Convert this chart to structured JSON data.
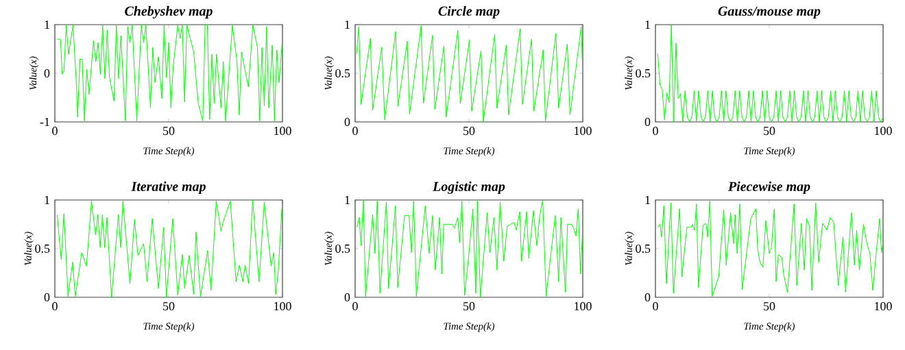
{
  "chart_data": [
    {
      "type": "line",
      "title": "Chebyshev map",
      "xlabel": "Time Step(k)",
      "ylabel": "Value(x)",
      "color": "#00ff00",
      "xlim": [
        0,
        100
      ],
      "ylim": [
        -1,
        1
      ],
      "xticks": [
        0,
        50,
        100
      ],
      "yticks": [
        -1,
        0,
        1
      ],
      "x": [
        1.2,
        2.5,
        3.2,
        4,
        5,
        6,
        8,
        9.5,
        10,
        11,
        12,
        13,
        14,
        15,
        17,
        18,
        19,
        20,
        21,
        22,
        23,
        24,
        26,
        27,
        28,
        29,
        31,
        32,
        33,
        34,
        36,
        38,
        39,
        40,
        42,
        43,
        44,
        45.5,
        47,
        48,
        49,
        50,
        51,
        52,
        54,
        55,
        56,
        57,
        58,
        61,
        63,
        65,
        66,
        67,
        68,
        69,
        70,
        71,
        73,
        74,
        75,
        78,
        80,
        81,
        82,
        85,
        87,
        89,
        90,
        91,
        92,
        93,
        94,
        95.5,
        96.5,
        97.5,
        98.5,
        100
      ],
      "values": [
        0.7,
        0.7,
        -0.02,
        0.05,
        0.99,
        0.39,
        0.99,
        -0.26,
        -0.9,
        0.29,
        0.29,
        -0.98,
        0.08,
        -0.43,
        0.67,
        0.24,
        0.63,
        -0.02,
        0.99,
        -0.11,
        0.89,
        -0.09,
        -0.57,
        0.99,
        -0.11,
        0.77,
        -0.98,
        0.96,
        0.63,
        0.99,
        -0.98,
        0.99,
        0.63,
        0.99,
        -0.71,
        0.53,
        -0.19,
        0.34,
        -0.52,
        0.99,
        -0.09,
        0.63,
        -0.71,
        0.15,
        0.99,
        0.72,
        0.99,
        -0.59,
        0.99,
        0.44,
        -0.62,
        -0.98,
        0.99,
        0.99,
        -0.95,
        0.39,
        -0.62,
        0.39,
        -0.71,
        0.24,
        -0.98,
        0.99,
        0.24,
        -0.86,
        0.44,
        -0.28,
        0.99,
        0.53,
        -0.98,
        0.53,
        -0.67,
        0.96,
        -0.71,
        0.58,
        -0.98,
        0.48,
        -0.19,
        0.72
      ]
    },
    {
      "type": "line",
      "title": "Circle map",
      "xlabel": "Time Step(k)",
      "ylabel": "Value(x)",
      "color": "#00ff00",
      "xlim": [
        0,
        100
      ],
      "ylim": [
        0,
        1
      ],
      "xticks": [
        0,
        50,
        100
      ],
      "yticks": [
        0,
        0.5,
        1
      ],
      "x": [
        0.6,
        1.6,
        2.6,
        6.7,
        7.7,
        11.7,
        13,
        17.8,
        18.8,
        22.9,
        23.9,
        29,
        30,
        34,
        35,
        39,
        40,
        45.1,
        46.2,
        50.2,
        51.2,
        55.3,
        56.3,
        61.3,
        62.3,
        66.4,
        67.4,
        72.5,
        73.5,
        77.5,
        78.5,
        82.6,
        83.6,
        88.2,
        89.4,
        93.2,
        94.4,
        99.3,
        100
      ],
      "values": [
        0.7,
        0.98,
        0.18,
        0.86,
        0.12,
        0.77,
        0.02,
        0.93,
        0.16,
        0.83,
        0.08,
        0.99,
        0.19,
        0.89,
        0.13,
        0.78,
        0.05,
        0.94,
        0.19,
        0.84,
        0.11,
        0.73,
        0.0,
        0.9,
        0.14,
        0.79,
        0.07,
        0.96,
        0.18,
        0.85,
        0.11,
        0.74,
        0.01,
        0.91,
        0.14,
        0.8,
        0.07,
        0.98,
        0.48
      ]
    },
    {
      "type": "line",
      "title": "Gauss/mouse map",
      "xlabel": "Time Step(k)",
      "ylabel": "Value(x)",
      "color": "#00ff00",
      "xlim": [
        0,
        100
      ],
      "ylim": [
        0,
        1
      ],
      "xticks": [
        0,
        50,
        100
      ],
      "yticks": [
        0,
        0.5,
        1
      ],
      "x": [
        1,
        2,
        3,
        4,
        5,
        6,
        7,
        8,
        9,
        10,
        11,
        12,
        13,
        14,
        15,
        16,
        17,
        18,
        19,
        20,
        21,
        22,
        23,
        24,
        25,
        26,
        27,
        28,
        29,
        30,
        31,
        32,
        33,
        34,
        35,
        36,
        37,
        38,
        39,
        40,
        41,
        42,
        43,
        44,
        45,
        46,
        47,
        48,
        49,
        50,
        51,
        52,
        53,
        54,
        55,
        56,
        57,
        58,
        59,
        60,
        61,
        62,
        63,
        64,
        65,
        66,
        67,
        68,
        69,
        70,
        71,
        72,
        73,
        74,
        75,
        76,
        77,
        78,
        79,
        80,
        81,
        82,
        83,
        84,
        85,
        86,
        87,
        88,
        89,
        90,
        91,
        92,
        93,
        94,
        95,
        96,
        97,
        98,
        99,
        100
      ],
      "values": [
        0.7,
        0.38,
        0.33,
        0.02,
        0.3,
        0.2,
        1.0,
        0.0,
        0.81,
        0.24,
        0.29,
        0.0,
        0.32,
        0.05,
        0.0,
        0.05,
        0.32,
        0.0,
        0.32,
        0.05,
        0.0,
        0.05,
        0.32,
        0.0,
        0.32,
        0.05,
        0.0,
        0.05,
        0.32,
        0.0,
        0.32,
        0.05,
        0.0,
        0.05,
        0.32,
        0.0,
        0.32,
        0.05,
        0.0,
        0.05,
        0.32,
        0.0,
        0.32,
        0.05,
        0.0,
        0.05,
        0.32,
        0.0,
        0.32,
        0.05,
        0.0,
        0.05,
        0.32,
        0.0,
        0.32,
        0.05,
        0.0,
        0.05,
        0.32,
        0.0,
        0.32,
        0.05,
        0.0,
        0.05,
        0.32,
        0.0,
        0.32,
        0.05,
        0.0,
        0.05,
        0.32,
        0.0,
        0.32,
        0.05,
        0.0,
        0.05,
        0.32,
        0.0,
        0.32,
        0.05,
        0.0,
        0.05,
        0.32,
        0.0,
        0.32,
        0.05,
        0.0,
        0.05,
        0.32,
        0.0,
        0.32,
        0.05,
        0.0,
        0.05,
        0.32,
        0.0,
        0.32,
        0.05,
        0.0,
        0.05
      ]
    },
    {
      "type": "line",
      "title": "Iterative map",
      "xlabel": "Time Step(k)",
      "ylabel": "Value(x)",
      "color": "#00ff00",
      "xlim": [
        0,
        100
      ],
      "ylim": [
        0,
        1
      ],
      "xticks": [
        0,
        50,
        100
      ],
      "yticks": [
        0,
        0.5,
        1
      ],
      "x": [
        1,
        2.8,
        4,
        5.8,
        7.8,
        9,
        11.8,
        13.9,
        16.1,
        17.9,
        18.9,
        19.9,
        20.9,
        21.9,
        22.9,
        24.9,
        27.9,
        28.9,
        29.9,
        33,
        35,
        36.5,
        39,
        40.5,
        42.8,
        45.5,
        47.8,
        49,
        51.8,
        54,
        56,
        57,
        59,
        61,
        62,
        64,
        67.1,
        68.6,
        70.9,
        73,
        74,
        77.1,
        79.6,
        81.1,
        82.6,
        83.6,
        85.1,
        86.9,
        89.7,
        92,
        95,
        96.2,
        97,
        98.2,
        99.7
      ],
      "values": [
        0.85,
        0.39,
        0.86,
        0.01,
        0.36,
        0.01,
        0.46,
        0.32,
        0.99,
        0.64,
        0.85,
        0.51,
        0.85,
        0.51,
        0.82,
        0.0,
        0.85,
        0.51,
        0.99,
        0.14,
        0.8,
        0.43,
        0.55,
        0.16,
        0.81,
        0.09,
        0.72,
        0.0,
        0.81,
        0.02,
        0.44,
        0.09,
        0.43,
        0.03,
        0.67,
        0.01,
        0.48,
        0.07,
        0.99,
        0.68,
        0.78,
        0.99,
        0.16,
        0.33,
        0.16,
        0.33,
        0.14,
        1.0,
        0.16,
        0.98,
        0.32,
        0.46,
        0.03,
        0.28,
        0.91
      ]
    },
    {
      "type": "line",
      "title": "Logistic map",
      "xlabel": "Time Step(k)",
      "ylabel": "Value(x)",
      "color": "#00ff00",
      "xlim": [
        0,
        100
      ],
      "ylim": [
        0,
        1
      ],
      "xticks": [
        0,
        50,
        100
      ],
      "yticks": [
        0,
        0.5,
        1
      ],
      "x": [
        0.8,
        1.8,
        2.6,
        3.6,
        4.6,
        7.7,
        8.7,
        9.7,
        10.9,
        13.7,
        14.7,
        17.7,
        18.7,
        21.7,
        23.7,
        24.7,
        25.7,
        26.9,
        30.8,
        32.5,
        34,
        35.2,
        37.1,
        38.1,
        38.9,
        41.1,
        42.6,
        43.6,
        45.1,
        45.9,
        46.9,
        48.1,
        50.2,
        51.7,
        53,
        53.7,
        55,
        58,
        59.2,
        61,
        62.3,
        63.7,
        65.3,
        66.8,
        68.3,
        69.8,
        70.8,
        72.3,
        73.1,
        75.3,
        76.3,
        78.3,
        79.8,
        81.1,
        82.4,
        83.9,
        87.9,
        89.4,
        90.4,
        92.4,
        93.3,
        95,
        96,
        97,
        98,
        99,
        100
      ],
      "values": [
        0.72,
        0.82,
        0.53,
        1.0,
        0.01,
        0.85,
        0.45,
        0.99,
        0.04,
        0.98,
        0.09,
        0.94,
        0.1,
        0.84,
        0.84,
        0.46,
        0.99,
        0.01,
        0.94,
        0.45,
        0.84,
        0.28,
        0.82,
        0.24,
        0.75,
        0.75,
        0.75,
        0.71,
        0.82,
        0.56,
        0.99,
        0.02,
        0.5,
        0.91,
        0.04,
        0.99,
        0.0,
        0.87,
        0.46,
        0.82,
        0.28,
        0.98,
        0.37,
        0.73,
        0.75,
        0.77,
        0.69,
        0.88,
        0.37,
        0.88,
        0.4,
        0.89,
        0.53,
        0.84,
        1.0,
        0.01,
        0.84,
        0.16,
        0.82,
        0.05,
        0.75,
        0.75,
        0.71,
        0.63,
        0.91,
        0.24,
        0.73
      ]
    },
    {
      "type": "line",
      "title": "Piecewise map",
      "xlabel": "Time Step(k)",
      "ylabel": "Value(x)",
      "color": "#00ff00",
      "xlim": [
        0,
        100
      ],
      "ylim": [
        0,
        1
      ],
      "xticks": [
        0,
        50,
        100
      ],
      "yticks": [
        0,
        0.5,
        1
      ],
      "x": [
        1,
        2,
        2.7,
        3.7,
        4.8,
        6.8,
        7.9,
        10.6,
        11.6,
        13.8,
        15.7,
        16.2,
        17.2,
        18,
        18.9,
        20.9,
        22.2,
        22.9,
        23.9,
        24.9,
        27.8,
        30,
        31.1,
        33,
        34.3,
        35,
        35.9,
        37.1,
        38.1,
        41.9,
        44.1,
        44.9,
        45.9,
        47.2,
        48.5,
        50,
        51,
        52.2,
        53,
        54,
        55.5,
        56.3,
        58,
        60.9,
        62.1,
        64.1,
        65.4,
        66.4,
        67.7,
        68.7,
        70.4,
        71.7,
        73.4,
        75.3,
        76.8,
        78.3,
        80.3,
        82.4,
        83.5,
        86.1,
        87.4,
        88.4,
        89.6,
        91.4,
        92.9,
        94.2,
        95.5,
        97,
        98.5,
        99.3,
        100
      ],
      "values": [
        0.72,
        0.75,
        0.62,
        0.94,
        0.14,
        0.97,
        0.04,
        0.91,
        0.21,
        0.72,
        0.72,
        0.75,
        0.69,
        0.96,
        0.1,
        0.74,
        0.76,
        0.62,
        0.99,
        0.01,
        0.21,
        0.9,
        0.33,
        0.87,
        0.55,
        0.85,
        0.45,
        0.96,
        0.08,
        0.81,
        0.91,
        0.5,
        0.36,
        0.31,
        0.79,
        0.45,
        0.52,
        0.91,
        0.16,
        0.44,
        0.41,
        0.24,
        0.05,
        0.96,
        0.12,
        0.76,
        0.28,
        0.81,
        0.73,
        0.07,
        0.97,
        0.36,
        0.76,
        0.69,
        0.82,
        0.77,
        0.12,
        0.62,
        0.05,
        0.87,
        0.33,
        0.69,
        0.28,
        0.75,
        0.55,
        0.45,
        0.07,
        0.46,
        0.81,
        0.46,
        0.57
      ]
    }
  ]
}
